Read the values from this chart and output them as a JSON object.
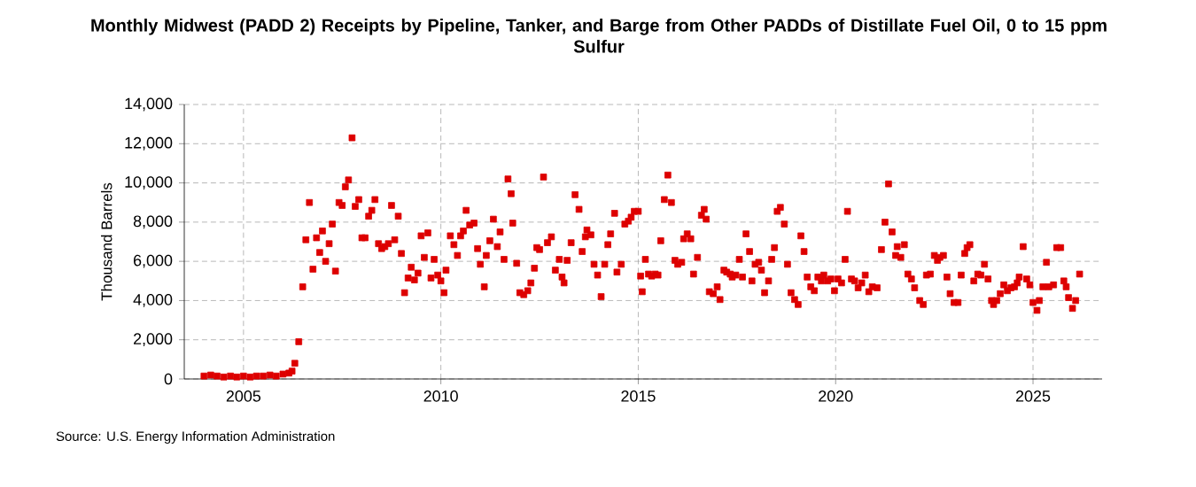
{
  "chart_data": {
    "type": "scatter",
    "title": "Monthly Midwest (PADD 2) Receipts by Pipeline, Tanker, and Barge from Other PADDs of Distillate Fuel Oil, 0 to 15 ppm Sulfur",
    "ylabel": "Thousand Barrels",
    "annotations": [
      "Source: U.S. Energy Information Administration"
    ],
    "xlim": [
      2003.5,
      2026.75
    ],
    "xticks": [
      2005,
      2010,
      2015,
      2020,
      2025
    ],
    "ylim": [
      0,
      14000
    ],
    "yticks": [
      0,
      {
        "value": 2000,
        "label": "2,000"
      },
      {
        "value": 4000,
        "label": "4,000"
      },
      {
        "value": 6000,
        "label": "6,000"
      },
      {
        "value": 8000,
        "label": "8,000"
      },
      {
        "value": 10000,
        "label": "10,000"
      },
      {
        "value": 12000,
        "label": "12,000"
      },
      {
        "value": 14000,
        "label": "14,000"
      }
    ],
    "grid": true,
    "marker": "square",
    "series": [
      {
        "color": "#dd0000",
        "x": [
          2004.0,
          2004.17,
          2004.33,
          2004.5,
          2004.67,
          2004.83,
          2005.0,
          2005.17,
          2005.33,
          2005.5,
          2005.67,
          2005.83,
          2006.0,
          2006.15,
          2006.23,
          2006.3,
          2006.4,
          2006.5,
          2006.58,
          2006.67,
          2006.76,
          2006.85,
          2006.93,
          2007.0,
          2007.08,
          2007.17,
          2007.25,
          2007.33,
          2007.42,
          2007.5,
          2007.58,
          2007.66,
          2007.75,
          2007.83,
          2007.92,
          2008.0,
          2008.08,
          2008.17,
          2008.25,
          2008.33,
          2008.42,
          2008.5,
          2008.58,
          2008.67,
          2008.75,
          2008.83,
          2008.92,
          2009.0,
          2009.08,
          2009.17,
          2009.25,
          2009.33,
          2009.42,
          2009.5,
          2009.58,
          2009.67,
          2009.75,
          2009.83,
          2009.92,
          2010.0,
          2010.08,
          2010.13,
          2010.24,
          2010.33,
          2010.42,
          2010.5,
          2010.57,
          2010.64,
          2010.73,
          2010.84,
          2010.93,
          2011.0,
          2011.1,
          2011.15,
          2011.24,
          2011.33,
          2011.43,
          2011.5,
          2011.6,
          2011.7,
          2011.78,
          2011.82,
          2011.92,
          2012.0,
          2012.1,
          2012.2,
          2012.28,
          2012.37,
          2012.43,
          2012.5,
          2012.6,
          2012.7,
          2012.8,
          2012.9,
          2013.0,
          2013.07,
          2013.12,
          2013.2,
          2013.3,
          2013.4,
          2013.5,
          2013.58,
          2013.66,
          2013.7,
          2013.8,
          2013.88,
          2013.97,
          2014.06,
          2014.15,
          2014.23,
          2014.3,
          2014.4,
          2014.46,
          2014.57,
          2014.66,
          2014.75,
          2014.82,
          2014.9,
          2015.0,
          2015.06,
          2015.1,
          2015.18,
          2015.26,
          2015.34,
          2015.43,
          2015.5,
          2015.57,
          2015.66,
          2015.75,
          2015.84,
          2015.93,
          2016.0,
          2016.1,
          2016.15,
          2016.24,
          2016.33,
          2016.4,
          2016.5,
          2016.6,
          2016.67,
          2016.72,
          2016.8,
          2016.9,
          2017.0,
          2017.07,
          2017.17,
          2017.24,
          2017.33,
          2017.38,
          2017.47,
          2017.56,
          2017.64,
          2017.73,
          2017.82,
          2017.88,
          2017.96,
          2018.05,
          2018.12,
          2018.2,
          2018.3,
          2018.38,
          2018.45,
          2018.52,
          2018.6,
          2018.7,
          2018.78,
          2018.87,
          2018.96,
          2019.05,
          2019.12,
          2019.2,
          2019.28,
          2019.37,
          2019.46,
          2019.55,
          2019.64,
          2019.7,
          2019.8,
          2019.88,
          2019.97,
          2020.06,
          2020.15,
          2020.24,
          2020.3,
          2020.4,
          2020.48,
          2020.57,
          2020.66,
          2020.75,
          2020.84,
          2020.93,
          2021.05,
          2021.16,
          2021.25,
          2021.34,
          2021.43,
          2021.52,
          2021.56,
          2021.65,
          2021.74,
          2021.83,
          2021.92,
          2022.0,
          2022.13,
          2022.22,
          2022.3,
          2022.4,
          2022.5,
          2022.58,
          2022.64,
          2022.73,
          2022.82,
          2022.9,
          2023.0,
          2023.1,
          2023.18,
          2023.27,
          2023.33,
          2023.4,
          2023.5,
          2023.6,
          2023.68,
          2023.77,
          2023.86,
          2023.95,
          2024.0,
          2024.08,
          2024.17,
          2024.26,
          2024.35,
          2024.44,
          2024.53,
          2024.6,
          2024.65,
          2024.75,
          2024.84,
          2024.92,
          2025.0,
          2025.1,
          2025.16,
          2025.25,
          2025.34,
          2025.4,
          2025.52,
          2025.6,
          2025.7,
          2025.78,
          2025.84,
          2025.9,
          2026.0,
          2026.08,
          2026.18
        ],
        "values": [
          150,
          200,
          150,
          100,
          150,
          100,
          150,
          100,
          150,
          150,
          200,
          150,
          250,
          300,
          400,
          800,
          1900,
          4700,
          7100,
          9000,
          5600,
          7200,
          6450,
          7550,
          6000,
          6900,
          7900,
          5500,
          9000,
          8850,
          9800,
          10150,
          12300,
          8800,
          9150,
          7200,
          7200,
          8300,
          8600,
          9150,
          6900,
          6650,
          6750,
          6900,
          8850,
          7100,
          8300,
          6400,
          4400,
          5150,
          5700,
          5050,
          5400,
          7300,
          6200,
          7450,
          5150,
          6100,
          5300,
          5000,
          4400,
          5550,
          7300,
          6850,
          6300,
          7300,
          7550,
          8600,
          7850,
          7950,
          6650,
          5850,
          4700,
          6300,
          7050,
          8150,
          6750,
          7500,
          6100,
          10200,
          9450,
          7950,
          5900,
          4400,
          4300,
          4500,
          4900,
          5650,
          6700,
          6600,
          10300,
          6950,
          7250,
          5550,
          6100,
          5200,
          4900,
          6050,
          6950,
          9400,
          8650,
          6500,
          7250,
          7600,
          7350,
          5850,
          5300,
          4200,
          5850,
          6850,
          7400,
          8450,
          5450,
          5850,
          7900,
          8050,
          8250,
          8550,
          8550,
          5250,
          4450,
          6100,
          5350,
          5250,
          5350,
          5300,
          7050,
          9150,
          10400,
          9000,
          6050,
          5850,
          5950,
          7150,
          7400,
          7150,
          5350,
          6200,
          8350,
          8650,
          8150,
          4450,
          4350,
          4700,
          4050,
          5550,
          5450,
          5350,
          5200,
          5300,
          6100,
          5200,
          7400,
          6500,
          5000,
          5850,
          5950,
          5550,
          4400,
          5000,
          6100,
          6700,
          8550,
          8750,
          7900,
          5850,
          4400,
          4050,
          3800,
          7300,
          6500,
          5200,
          4700,
          4500,
          5200,
          5000,
          5300,
          5000,
          5100,
          4500,
          5100,
          4900,
          6100,
          8550,
          5100,
          5000,
          4650,
          4900,
          5300,
          4450,
          4700,
          4650,
          6600,
          8000,
          9950,
          7500,
          6300,
          6750,
          6200,
          6850,
          5350,
          5100,
          4650,
          4000,
          3800,
          5300,
          5350,
          6300,
          6050,
          6200,
          6300,
          5200,
          4350,
          3900,
          3900,
          5300,
          6400,
          6700,
          6850,
          5000,
          5350,
          5300,
          5850,
          5100,
          4000,
          3800,
          4000,
          4350,
          4800,
          4500,
          4650,
          4700,
          4900,
          5200,
          6750,
          5100,
          4800,
          3900,
          3500,
          4000,
          4700,
          5950,
          4700,
          4800,
          6700,
          6700,
          5000,
          4700,
          4150,
          3600,
          4000,
          5350
        ]
      }
    ]
  }
}
